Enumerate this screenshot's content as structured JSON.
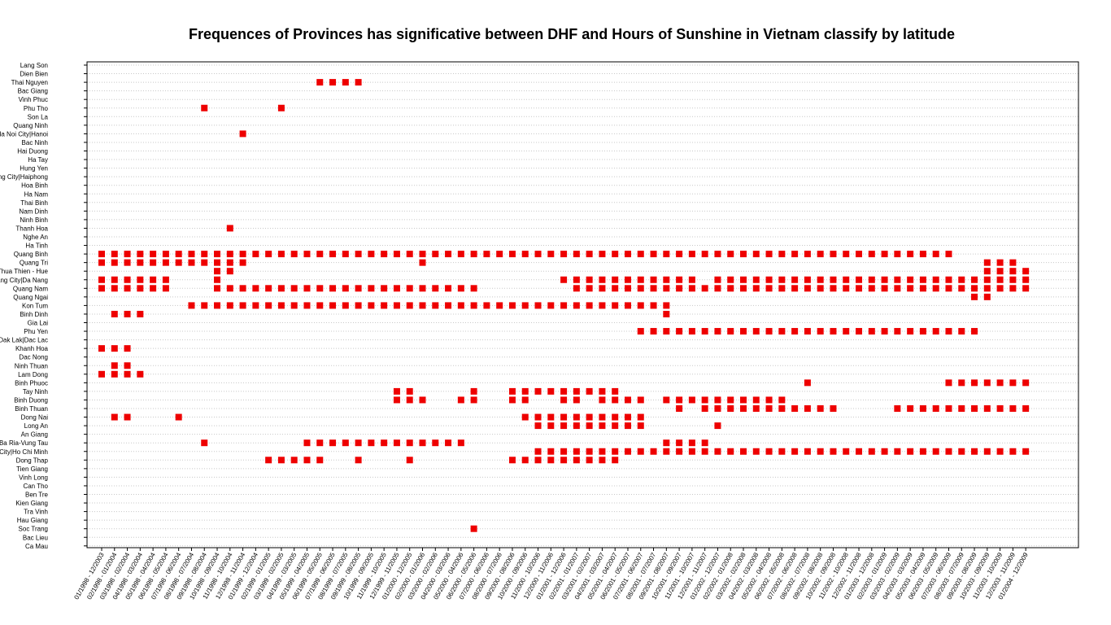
{
  "chart_data": {
    "type": "scatter",
    "title": "Frequences of Provinces has significative between DHF and Hours of Sunshine in Vietnam classify by latitude",
    "marker_color": "#ee0000",
    "provinces": [
      "Lang Son",
      "Dien Bien",
      "Thai Nguyen",
      "Bac Giang",
      "Vinh Phuc",
      "Phu Tho",
      "Son La",
      "Quang Ninh",
      "Ha Noi City|Hanoi",
      "Bac Ninh",
      "Hai Duong",
      "Ha Tay",
      "Hung Yen",
      "Hai Phong City|Haiphong",
      "Hoa Binh",
      "Ha Nam",
      "Thai Binh",
      "Nam Dinh",
      "Ninh Binh",
      "Thanh Hoa",
      "Nghe An",
      "Ha Tinh",
      "Quang Binh",
      "Quang Tri",
      "Thua Thien - Hue",
      "Da Nang City|Da Nang",
      "Quang Nam",
      "Quang Ngai",
      "Kon Tum",
      "Binh Dinh",
      "Gia Lai",
      "Phu Yen",
      "Dak Lak|Dac Lac",
      "Khanh Hoa",
      "Dac Nong",
      "Ninh Thuan",
      "Lam Dong",
      "Binh Phuoc",
      "Tay Ninh",
      "Binh Duong",
      "Binh Thuan",
      "Dong Nai",
      "Long An",
      "An Giang",
      "Ba Ria-Vung Tau",
      "Ho Chi Minh City|Ho Chi Minh",
      "Dong Thap",
      "Tien Giang",
      "Vinh Long",
      "Can Tho",
      "Ben Tre",
      "Kien Giang",
      "Tra Vinh",
      "Hau Giang",
      "Soc Trang",
      "Bac Lieu",
      "Ca Mau"
    ],
    "periods": [
      "01/1998 - 12/2003",
      "02/1998 - 01/2004",
      "03/1998 - 02/2004",
      "04/1998 - 03/2004",
      "05/1998 - 04/2004",
      "06/1998 - 05/2004",
      "07/1998 - 06/2004",
      "08/1998 - 07/2004",
      "09/1998 - 08/2004",
      "10/1998 - 09/2004",
      "11/1998 - 10/2004",
      "12/1998 - 11/2004",
      "01/1999 - 12/2004",
      "02/1999 - 01/2005",
      "03/1999 - 02/2005",
      "04/1999 - 03/2005",
      "05/1999 - 04/2005",
      "06/1999 - 05/2005",
      "07/1999 - 06/2005",
      "08/1999 - 07/2005",
      "09/1999 - 08/2005",
      "10/1999 - 09/2005",
      "11/1999 - 10/2005",
      "12/1999 - 11/2005",
      "01/2000 - 12/2005",
      "02/2000 - 01/2006",
      "03/2000 - 02/2006",
      "04/2000 - 03/2006",
      "05/2000 - 04/2006",
      "06/2000 - 05/2006",
      "07/2000 - 06/2006",
      "08/2000 - 07/2006",
      "09/2000 - 08/2006",
      "10/2000 - 09/2006",
      "11/2000 - 10/2006",
      "12/2000 - 11/2006",
      "01/2001 - 12/2006",
      "02/2001 - 01/2007",
      "03/2001 - 02/2007",
      "04/2001 - 03/2007",
      "05/2001 - 04/2007",
      "06/2001 - 05/2007",
      "07/2001 - 06/2007",
      "08/2001 - 07/2007",
      "09/2001 - 08/2007",
      "10/2001 - 09/2007",
      "11/2001 - 10/2007",
      "12/2001 - 11/2007",
      "01/2002 - 12/2007",
      "02/2002 - 01/2008",
      "03/2002 - 02/2008",
      "04/2002 - 03/2008",
      "05/2002 - 04/2008",
      "06/2002 - 05/2008",
      "07/2002 - 06/2008",
      "08/2002 - 07/2008",
      "09/2002 - 08/2008",
      "10/2002 - 09/2008",
      "11/2002 - 10/2008",
      "12/2002 - 11/2008",
      "01/2003 - 12/2008",
      "02/2003 - 01/2009",
      "03/2003 - 02/2009",
      "04/2003 - 03/2009",
      "05/2003 - 04/2009",
      "06/2003 - 05/2009",
      "07/2003 - 06/2009",
      "08/2003 - 07/2009",
      "09/2003 - 08/2009",
      "10/2003 - 09/2009",
      "11/2003 - 10/2009",
      "12/2003 - 11/2009",
      "01/2004 - 12/2009"
    ],
    "x_tick_labels": [
      "01/1998 - 12/2003",
      "02/1998 - 01/2004",
      "03/1998 - 02/2004",
      "04/1998 - 03/2004",
      "05/1998 - 04/2004",
      "06/1998 - 05/2004",
      "07/1998 - 06/2004",
      "08/1998 - 07/2004",
      "09/1998 - 08/2004",
      "10/1998 - 09/2004",
      "11/1998 - 10/2004",
      "12/1998 - 11/2004",
      "01/1999 - 12/2004",
      "02/1999 - 01/2005",
      "03/1999 - 02/2005",
      "04/1999 - 03/2005",
      "05/1999 - 04/2005",
      "06/1999 - 05/2005",
      "07/1999 - 06/2005",
      "08/1999 - 07/2005",
      "09/1999 - 08/2005",
      "10/1999 - 09/2005",
      "11/1999 - 10/2005",
      "12/1999 - 11/2005",
      "01/2000 - 12/2005",
      "02/2000 - 01/2006",
      "03/2000 - 02/2006",
      "04/2000 - 03/2006",
      "05/2000 - 04/2006",
      "06/2000 - 05/2006",
      "07/2000 - 06/2006",
      "08/2000 - 07/2006",
      "09/2000 - 08/2006",
      "10/2000 - 09/2006",
      "11/2000 - 10/2006",
      "12/2000 - 11/2006",
      "01/2001 - 12/2006",
      "02/2001 - 01/2007",
      "03/2001 - 02/2007",
      "04/2001 - 03/2007",
      "05/2001 - 04/2007",
      "06/2001 - 05/2007",
      "07/2001 - 06/2007",
      "08/2001 - 07/2007",
      "09/2001 - 08/2007",
      "10/2001 - 09/2007",
      "11/2001 - 10/2007",
      "12/2001 - 11/2007",
      "01/2002 - 12/2007",
      "02/2002 - 01/2008",
      "03/2002 - 02/2008",
      "04/2002 - 03/2008",
      "05/2002 - 04/2008",
      "06/2002 - 05/2008",
      "07/2002 - 06/2008",
      "08/2002 - 07/2008",
      "09/2002 - 08/2008",
      "10/2002 - 09/2008",
      "11/2002 - 10/2008",
      "12/2002 - 11/2008",
      "01/2003 - 12/2008",
      "02/2003 - 01/2009",
      "03/2003 - 02/2009",
      "04/2003 - 03/2009",
      "05/2003 - 04/2009",
      "06/2003 - 05/2009",
      "07/2003 - 06/2009",
      "08/2003 - 07/2009",
      "09/2003 - 08/2009",
      "10/2003 - 09/2009",
      "11/2003 - 10/2009",
      "12/2003 - 11/2009",
      "01/2004 - 12/2009"
    ],
    "points": {
      "Thai Nguyen": [
        17,
        18,
        19,
        20
      ],
      "Phu Tho": [
        8,
        14
      ],
      "Ha Noi City|Hanoi": [
        11
      ],
      "Thanh Hoa": [
        10
      ],
      "Quang Binh": [
        0,
        1,
        2,
        3,
        4,
        5,
        6,
        7,
        8,
        9,
        10,
        11,
        12,
        13,
        14,
        15,
        16,
        17,
        18,
        19,
        20,
        21,
        22,
        23,
        24,
        25,
        26,
        27,
        28,
        29,
        30,
        31,
        32,
        33,
        34,
        35,
        36,
        37,
        38,
        39,
        40,
        41,
        42,
        43,
        44,
        45,
        46,
        47,
        48,
        49,
        50,
        51,
        52,
        53,
        54,
        55,
        56,
        57,
        58,
        59,
        60,
        61,
        62,
        63,
        64,
        65,
        66
      ],
      "Quang Tri": [
        0,
        1,
        2,
        3,
        4,
        5,
        6,
        7,
        8,
        9,
        10,
        11,
        25,
        69,
        70,
        71
      ],
      "Thua Thien - Hue": [
        9,
        10,
        69,
        70,
        71,
        72
      ],
      "Da Nang City|Da Nang": [
        0,
        1,
        2,
        3,
        4,
        5,
        9,
        36,
        37,
        38,
        39,
        40,
        41,
        42,
        43,
        44,
        45,
        46,
        48,
        49,
        50,
        51,
        52,
        53,
        54,
        55,
        56,
        57,
        58,
        59,
        60,
        61,
        62,
        63,
        64,
        65,
        66,
        67,
        68,
        69,
        70,
        71,
        72
      ],
      "Quang Nam": [
        0,
        1,
        2,
        3,
        4,
        5,
        9,
        10,
        11,
        12,
        13,
        14,
        15,
        16,
        17,
        18,
        19,
        20,
        21,
        22,
        23,
        24,
        25,
        26,
        27,
        28,
        29,
        37,
        38,
        39,
        40,
        41,
        42,
        43,
        44,
        45,
        46,
        47,
        48,
        49,
        50,
        51,
        52,
        53,
        54,
        55,
        56,
        57,
        58,
        59,
        60,
        61,
        62,
        63,
        64,
        65,
        66,
        67,
        68,
        69,
        70,
        71,
        72
      ],
      "Quang Ngai": [
        68,
        69
      ],
      "Kon Tum": [
        7,
        8,
        9,
        10,
        11,
        12,
        13,
        14,
        15,
        16,
        17,
        18,
        19,
        20,
        21,
        22,
        23,
        24,
        25,
        26,
        27,
        28,
        29,
        30,
        31,
        32,
        33,
        34,
        35,
        36,
        37,
        38,
        39,
        40,
        41,
        42,
        43,
        44
      ],
      "Binh Dinh": [
        1,
        2,
        3,
        44
      ],
      "Phu Yen": [
        42,
        43,
        44,
        45,
        46,
        47,
        48,
        49,
        50,
        51,
        52,
        53,
        54,
        55,
        56,
        57,
        58,
        59,
        60,
        61,
        62,
        63,
        64,
        65,
        66,
        67,
        68
      ],
      "Khanh Hoa": [
        0,
        1,
        2
      ],
      "Ninh Thuan": [
        1,
        2
      ],
      "Lam Dong": [
        0,
        1,
        2,
        3
      ],
      "Binh Phuoc": [
        55,
        66,
        67,
        68,
        69,
        70,
        71,
        72
      ],
      "Tay Ninh": [
        23,
        24,
        29,
        32,
        33,
        34,
        35,
        36,
        37,
        38,
        39,
        40
      ],
      "Binh Duong": [
        23,
        24,
        25,
        28,
        29,
        32,
        33,
        36,
        37,
        39,
        40,
        41,
        42,
        44,
        45,
        46,
        47,
        48,
        49,
        50,
        51,
        52,
        53
      ],
      "Binh Thuan": [
        45,
        47,
        48,
        49,
        50,
        51,
        52,
        53,
        54,
        55,
        56,
        57,
        62,
        63,
        64,
        65,
        66,
        67,
        68,
        69,
        70,
        71,
        72
      ],
      "Dong Nai": [
        1,
        2,
        6,
        33,
        34,
        35,
        36,
        37,
        38,
        39,
        40,
        41,
        42
      ],
      "Long An": [
        34,
        35,
        36,
        37,
        38,
        39,
        40,
        41,
        42,
        48
      ],
      "Ba Ria-Vung Tau": [
        8,
        16,
        17,
        18,
        19,
        20,
        21,
        22,
        23,
        24,
        25,
        26,
        27,
        28,
        44,
        45,
        46,
        47
      ],
      "Ho Chi Minh City|Ho Chi Minh": [
        34,
        35,
        36,
        37,
        38,
        39,
        40,
        41,
        42,
        43,
        44,
        45,
        46,
        47,
        48,
        49,
        50,
        51,
        52,
        53,
        54,
        55,
        56,
        57,
        58,
        59,
        60,
        61,
        62,
        63,
        64,
        65,
        66,
        67,
        68,
        69,
        70,
        71,
        72
      ],
      "Dong Thap": [
        13,
        14,
        15,
        16,
        17,
        20,
        24,
        32,
        33,
        34,
        35,
        36,
        37,
        38,
        39,
        40
      ],
      "Soc Trang": [
        29
      ]
    },
    "grid": true,
    "grid_style": "dotted horizontal"
  }
}
